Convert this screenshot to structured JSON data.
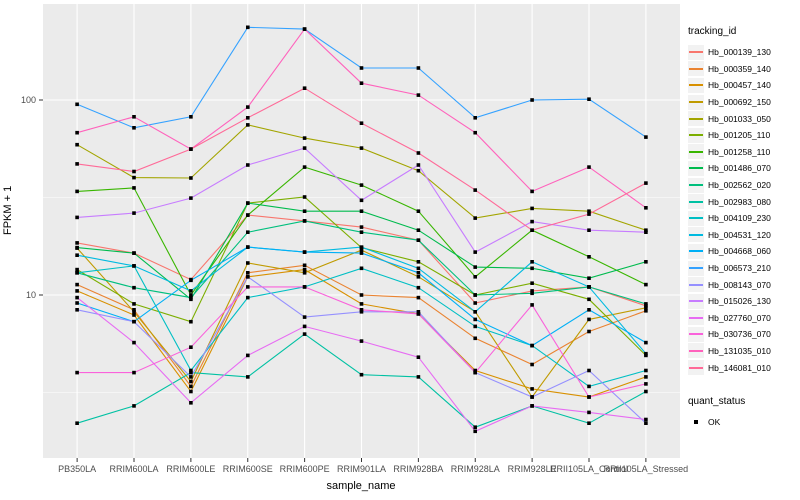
{
  "chart_data": {
    "type": "line",
    "title": "",
    "xlabel": "sample_name",
    "ylabel": "FPKM + 1",
    "y_scale": "log10",
    "y_ticks": [
      10,
      100
    ],
    "y_minor_ticks": [
      3.162,
      31.62
    ],
    "ylim": [
      1.45,
      296
    ],
    "grid": true,
    "legend_position": "right",
    "panel_bg": "#EBEBEB",
    "grid_color": "#FFFFFF",
    "axis_text_color": "#4D4D4D",
    "point_shape": "filled-square",
    "point_color": "#000000",
    "legend_title": "tracking_id",
    "quant_legend_title": "quant_status",
    "quant_legend_items": [
      "OK"
    ],
    "categories": [
      "PB350LA",
      "RRIM600LA",
      "RRIM600LE",
      "RRIM600SE",
      "RRIM600PE",
      "RRIM901LA",
      "RRIM928BA",
      "RRIM928LA",
      "RRIM928LE",
      "RRII105LA_Control",
      "RRII105LA_Stressed"
    ],
    "series": [
      {
        "name": "Hb_000139_130",
        "color": "#F8766D",
        "values": [
          18.5,
          16.4,
          12.0,
          25.7,
          24.0,
          22.3,
          19.1,
          9.1,
          10.5,
          11.0,
          8.8
        ]
      },
      {
        "name": "Hb_000359_140",
        "color": "#EA8331",
        "values": [
          11.3,
          8.4,
          3.4,
          13.0,
          14.2,
          10.0,
          9.7,
          6.0,
          4.4,
          6.5,
          8.3
        ]
      },
      {
        "name": "Hb_000457_140",
        "color": "#D89000",
        "values": [
          10.5,
          7.9,
          3.2,
          12.4,
          13.5,
          9.0,
          8.0,
          4.1,
          3.3,
          3.0,
          3.8
        ]
      },
      {
        "name": "Hb_000692_150",
        "color": "#C09B00",
        "values": [
          17.4,
          8.2,
          3.6,
          14.6,
          13.0,
          17.0,
          12.4,
          8.2,
          3.0,
          7.5,
          8.6
        ]
      },
      {
        "name": "Hb_001033_050",
        "color": "#A3A500",
        "values": [
          59,
          40,
          39.8,
          74.5,
          63.8,
          56.7,
          43.4,
          24.8,
          27.8,
          26.9,
          21.5
        ]
      },
      {
        "name": "Hb_001205_110",
        "color": "#7CAE00",
        "values": [
          13.5,
          9.0,
          7.3,
          29.6,
          31.8,
          17.5,
          14.8,
          10.0,
          11.5,
          9.5,
          4.9
        ]
      },
      {
        "name": "Hb_001258_110",
        "color": "#39B600",
        "values": [
          34,
          35.4,
          10.0,
          25.7,
          45.3,
          36.6,
          26.9,
          12.4,
          21.5,
          15.7,
          11.3
        ]
      },
      {
        "name": "Hb_001486_070",
        "color": "#00BB4E",
        "values": [
          17.5,
          16.4,
          9.5,
          29.6,
          26.9,
          26.9,
          21.5,
          13.9,
          13.7,
          12.2,
          14.8
        ]
      },
      {
        "name": "Hb_002562_020",
        "color": "#00BF7D",
        "values": [
          13.0,
          10.9,
          9.7,
          21.0,
          24.0,
          21.0,
          19.1,
          10.0,
          10.2,
          11.0,
          9.0
        ]
      },
      {
        "name": "Hb_002983_080",
        "color": "#00C1A3",
        "values": [
          2.2,
          2.7,
          4.0,
          3.8,
          6.3,
          3.9,
          3.8,
          2.1,
          2.7,
          2.2,
          3.2
        ]
      },
      {
        "name": "Hb_004109_230",
        "color": "#00BFC4",
        "values": [
          13.0,
          14.1,
          4.1,
          9.7,
          11.0,
          13.7,
          10.9,
          6.9,
          5.5,
          3.4,
          4.1
        ]
      },
      {
        "name": "Hb_004531_120",
        "color": "#00BAE0",
        "values": [
          16.0,
          14.1,
          10.5,
          17.6,
          16.6,
          17.6,
          13.7,
          8.2,
          14.8,
          11.0,
          5.0
        ]
      },
      {
        "name": "Hb_004668_060",
        "color": "#00B0F6",
        "values": [
          9.1,
          7.3,
          11.9,
          17.6,
          16.6,
          16.4,
          13.0,
          7.5,
          5.5,
          8.4,
          5.7
        ]
      },
      {
        "name": "Hb_006573_210",
        "color": "#35A2FF",
        "values": [
          95,
          72,
          82,
          236,
          231,
          146,
          146,
          81,
          100,
          101,
          64.5
        ]
      },
      {
        "name": "Hb_008143_070",
        "color": "#9590FF",
        "values": [
          8.4,
          7.3,
          3.8,
          12.4,
          7.7,
          8.2,
          8.2,
          4.0,
          3.0,
          4.1,
          2.2
        ]
      },
      {
        "name": "Hb_015026_130",
        "color": "#C77CFF",
        "values": [
          25,
          26.3,
          31.4,
          46.4,
          56.7,
          30.6,
          46.4,
          16.6,
          23.8,
          21.5,
          21.0
        ]
      },
      {
        "name": "Hb_027760_070",
        "color": "#E76BF3",
        "values": [
          9.7,
          5.7,
          2.8,
          4.9,
          6.9,
          5.8,
          4.8,
          2.0,
          2.7,
          2.5,
          2.3
        ]
      },
      {
        "name": "Hb_030736_070",
        "color": "#FA62DB",
        "values": [
          4.0,
          4.0,
          5.4,
          11.0,
          11.0,
          8.4,
          8.0,
          4.0,
          8.9,
          3.0,
          3.5
        ]
      },
      {
        "name": "Hb_131035_010",
        "color": "#FF62BC",
        "values": [
          68,
          82,
          56,
          92,
          231,
          122,
          106,
          68,
          34,
          45.3,
          28
        ]
      },
      {
        "name": "Hb_146081_010",
        "color": "#FF6A98",
        "values": [
          47,
          43,
          56,
          81,
          115,
          76,
          53.5,
          34.5,
          21.5,
          26,
          37.5
        ]
      }
    ]
  }
}
